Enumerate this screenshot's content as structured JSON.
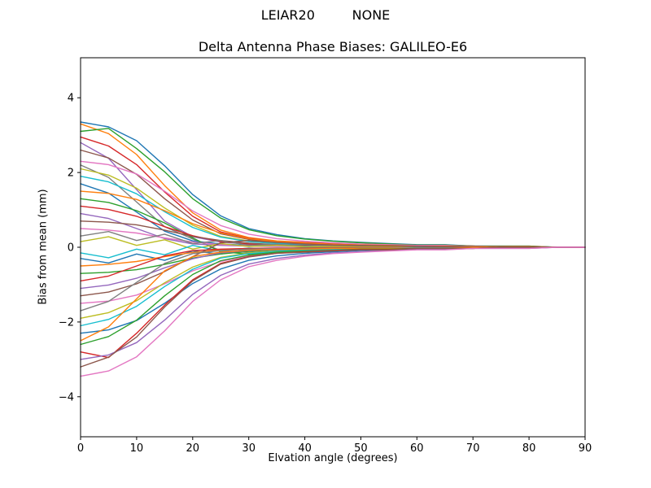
{
  "figure": {
    "suptitle": "LEIAR20         NONE",
    "title": "Delta Antenna Phase Biases: GALILEO-E6",
    "xlabel": "Elvation angle (degrees)",
    "ylabel": "Bias from mean (mm)"
  },
  "chart_data": {
    "type": "line",
    "title": "Delta Antenna Phase Biases: GALILEO-E6",
    "suptitle": "LEIAR20         NONE",
    "xlabel": "Elvation angle (degrees)",
    "ylabel": "Bias from mean (mm)",
    "xlim": [
      0,
      90
    ],
    "ylim": [
      -5.07,
      5.07
    ],
    "xticks": [
      0,
      10,
      20,
      30,
      40,
      50,
      60,
      70,
      80,
      90
    ],
    "yticks": [
      -4,
      -2,
      0,
      2,
      4
    ],
    "grid": false,
    "legend": "none",
    "x": [
      0,
      5,
      10,
      15,
      20,
      25,
      30,
      35,
      40,
      45,
      50,
      55,
      60,
      65,
      70,
      75,
      80,
      85,
      90
    ],
    "series": [
      {
        "name": "line-01",
        "color": "#1f77b4",
        "values": [
          3.35,
          3.22,
          2.85,
          2.18,
          1.41,
          0.84,
          0.5,
          0.34,
          0.23,
          0.17,
          0.13,
          0.1,
          0.07,
          0.07,
          0.03,
          0.03,
          0.03,
          0.0,
          0.0
        ]
      },
      {
        "name": "line-02",
        "color": "#ff7f0e",
        "values": [
          3.3,
          3.04,
          2.48,
          1.65,
          0.92,
          0.46,
          0.26,
          0.17,
          0.13,
          0.1,
          0.07,
          0.07,
          0.03,
          0.03,
          0.03,
          0.0,
          0.0,
          0.0,
          0.0
        ]
      },
      {
        "name": "line-03",
        "color": "#2ca02c",
        "values": [
          3.1,
          3.18,
          2.64,
          2.02,
          1.3,
          0.78,
          0.47,
          0.31,
          0.22,
          0.16,
          0.12,
          0.09,
          0.06,
          0.06,
          0.03,
          0.03,
          0.03,
          0.0,
          0.0
        ]
      },
      {
        "name": "line-04",
        "color": "#d62728",
        "values": [
          2.95,
          2.71,
          2.21,
          1.48,
          0.83,
          0.41,
          0.24,
          0.15,
          0.12,
          0.09,
          0.06,
          0.06,
          0.03,
          0.03,
          0.03,
          0.0,
          0.0,
          0.0,
          0.0
        ]
      },
      {
        "name": "line-05",
        "color": "#9467bd",
        "values": [
          2.8,
          2.38,
          1.54,
          0.7,
          0.28,
          0.14,
          0.08,
          0.06,
          0.06,
          0.03,
          0.03,
          0.03,
          0.03,
          0.03,
          0.0,
          0.0,
          0.0,
          0.0,
          0.0
        ]
      },
      {
        "name": "line-06",
        "color": "#8c564b",
        "values": [
          2.6,
          2.39,
          1.95,
          1.3,
          0.73,
          0.36,
          0.21,
          0.13,
          0.1,
          0.08,
          0.05,
          0.05,
          0.03,
          0.03,
          0.03,
          0.0,
          0.0,
          0.0,
          0.0
        ]
      },
      {
        "name": "line-07",
        "color": "#e377c2",
        "values": [
          2.3,
          2.21,
          1.96,
          1.5,
          0.97,
          0.58,
          0.35,
          0.23,
          0.16,
          0.12,
          0.09,
          0.07,
          0.05,
          0.05,
          0.02,
          0.02,
          0.02,
          0.0,
          0.0
        ]
      },
      {
        "name": "line-08",
        "color": "#7f7f7f",
        "values": [
          2.2,
          1.87,
          1.21,
          0.55,
          0.22,
          -0.09,
          -0.14,
          -0.1,
          -0.07,
          -0.05,
          -0.04,
          -0.03,
          -0.02,
          -0.02,
          -0.01,
          0.0,
          0.0,
          0.0,
          0.0
        ]
      },
      {
        "name": "line-09",
        "color": "#bcbd22",
        "values": [
          2.1,
          1.93,
          1.58,
          1.05,
          0.59,
          0.29,
          0.17,
          0.11,
          0.08,
          0.06,
          0.04,
          0.04,
          0.02,
          0.02,
          0.02,
          0.0,
          0.0,
          0.0,
          0.0
        ]
      },
      {
        "name": "line-10",
        "color": "#17becf",
        "values": [
          1.9,
          1.75,
          1.43,
          0.95,
          0.53,
          0.27,
          0.15,
          0.1,
          0.08,
          0.06,
          0.04,
          0.04,
          0.02,
          0.02,
          0.02,
          0.0,
          0.0,
          0.0,
          0.0
        ]
      },
      {
        "name": "line-11",
        "color": "#1f77b4",
        "values": [
          1.7,
          1.45,
          0.94,
          0.43,
          0.17,
          0.09,
          0.05,
          0.03,
          0.03,
          0.02,
          0.02,
          0.02,
          0.02,
          0.02,
          0.0,
          0.0,
          0.0,
          0.0,
          0.0
        ]
      },
      {
        "name": "line-12",
        "color": "#ff7f0e",
        "values": [
          1.5,
          1.44,
          1.28,
          0.98,
          0.63,
          0.38,
          0.23,
          0.15,
          0.11,
          0.08,
          0.06,
          0.05,
          0.03,
          0.03,
          0.02,
          0.02,
          0.02,
          0.0,
          0.0
        ]
      },
      {
        "name": "line-13",
        "color": "#2ca02c",
        "values": [
          1.3,
          1.2,
          0.98,
          0.65,
          0.25,
          -0.12,
          -0.18,
          -0.13,
          -0.09,
          -0.06,
          -0.05,
          -0.04,
          -0.03,
          -0.02,
          -0.02,
          -0.01,
          0.0,
          0.0,
          0.0
        ]
      },
      {
        "name": "line-14",
        "color": "#d62728",
        "values": [
          1.1,
          1.01,
          0.83,
          0.55,
          0.31,
          0.15,
          0.09,
          0.06,
          0.04,
          0.03,
          0.02,
          0.02,
          0.01,
          0.01,
          0.01,
          0.0,
          0.0,
          0.0,
          0.0
        ]
      },
      {
        "name": "line-15",
        "color": "#9467bd",
        "values": [
          0.9,
          0.77,
          0.5,
          0.23,
          0.09,
          0.05,
          0.03,
          0.02,
          0.02,
          0.01,
          0.01,
          0.01,
          0.01,
          0.01,
          0.0,
          0.0,
          0.0,
          0.0,
          0.0
        ]
      },
      {
        "name": "line-16",
        "color": "#8c564b",
        "values": [
          0.7,
          0.67,
          0.6,
          0.46,
          0.29,
          0.18,
          0.11,
          0.07,
          0.05,
          0.04,
          0.03,
          0.02,
          0.01,
          0.01,
          0.01,
          0.01,
          0.01,
          0.0,
          0.0
        ]
      },
      {
        "name": "line-17",
        "color": "#e377c2",
        "values": [
          0.5,
          0.46,
          0.38,
          0.25,
          0.14,
          0.07,
          0.04,
          0.03,
          0.02,
          0.02,
          0.01,
          0.01,
          0.01,
          0.01,
          0.0,
          0.0,
          0.0,
          0.0,
          0.0
        ]
      },
      {
        "name": "line-18",
        "color": "#7f7f7f",
        "values": [
          0.3,
          0.42,
          0.18,
          0.35,
          0.1,
          0.18,
          0.05,
          0.08,
          0.03,
          0.05,
          0.02,
          0.02,
          0.01,
          0.01,
          0.0,
          0.0,
          0.0,
          0.0,
          0.0
        ]
      },
      {
        "name": "line-19",
        "color": "#bcbd22",
        "values": [
          0.15,
          0.28,
          0.05,
          0.2,
          -0.05,
          0.1,
          0.02,
          0.05,
          0.01,
          0.02,
          0.01,
          0.01,
          0.0,
          0.0,
          0.0,
          0.0,
          0.0,
          0.0,
          0.0
        ]
      },
      {
        "name": "line-20",
        "color": "#17becf",
        "values": [
          -0.15,
          -0.28,
          -0.05,
          -0.2,
          0.05,
          -0.1,
          -0.02,
          -0.05,
          -0.01,
          -0.02,
          -0.01,
          -0.01,
          0.0,
          0.0,
          0.0,
          0.0,
          0.0,
          0.0,
          0.0
        ]
      },
      {
        "name": "line-21",
        "color": "#1f77b4",
        "values": [
          -0.3,
          -0.42,
          -0.18,
          -0.35,
          -0.1,
          -0.18,
          -0.05,
          -0.08,
          -0.03,
          -0.05,
          -0.02,
          -0.02,
          -0.01,
          -0.01,
          0.0,
          0.0,
          0.0,
          0.0,
          0.0
        ]
      },
      {
        "name": "line-22",
        "color": "#ff7f0e",
        "values": [
          -0.5,
          -0.46,
          -0.38,
          -0.25,
          -0.14,
          -0.07,
          -0.04,
          -0.03,
          -0.02,
          -0.02,
          -0.01,
          -0.01,
          -0.01,
          -0.01,
          0.0,
          0.0,
          0.0,
          0.0,
          0.0
        ]
      },
      {
        "name": "line-23",
        "color": "#2ca02c",
        "values": [
          -0.7,
          -0.67,
          -0.6,
          -0.46,
          -0.29,
          -0.18,
          -0.11,
          -0.07,
          -0.05,
          -0.04,
          -0.03,
          -0.02,
          -0.01,
          -0.01,
          -0.01,
          -0.01,
          -0.01,
          0.0,
          0.0
        ]
      },
      {
        "name": "line-24",
        "color": "#d62728",
        "values": [
          -0.9,
          -0.77,
          -0.5,
          -0.23,
          -0.09,
          -0.05,
          -0.03,
          -0.02,
          -0.02,
          -0.01,
          -0.01,
          -0.01,
          -0.01,
          -0.01,
          0.0,
          0.0,
          0.0,
          0.0,
          0.0
        ]
      },
      {
        "name": "line-25",
        "color": "#9467bd",
        "values": [
          -1.1,
          -1.01,
          -0.83,
          -0.55,
          -0.31,
          -0.15,
          -0.09,
          -0.06,
          -0.04,
          -0.03,
          -0.02,
          -0.02,
          -0.01,
          -0.01,
          -0.01,
          0.0,
          0.0,
          0.0,
          0.0
        ]
      },
      {
        "name": "line-26",
        "color": "#8c564b",
        "values": [
          -1.3,
          -1.2,
          -0.98,
          -0.65,
          -0.25,
          0.12,
          0.18,
          0.13,
          0.09,
          0.06,
          0.05,
          0.04,
          0.03,
          0.02,
          0.02,
          0.01,
          0.0,
          0.0,
          0.0
        ]
      },
      {
        "name": "line-27",
        "color": "#e377c2",
        "values": [
          -1.5,
          -1.44,
          -1.28,
          -0.98,
          -0.63,
          -0.38,
          -0.23,
          -0.15,
          -0.11,
          -0.08,
          -0.06,
          -0.05,
          -0.03,
          -0.03,
          -0.02,
          -0.02,
          -0.02,
          0.0,
          0.0
        ]
      },
      {
        "name": "line-28",
        "color": "#7f7f7f",
        "values": [
          -1.7,
          -1.45,
          -0.94,
          -0.43,
          -0.17,
          -0.09,
          -0.05,
          -0.03,
          -0.03,
          -0.02,
          -0.02,
          -0.02,
          -0.02,
          -0.02,
          0.0,
          0.0,
          0.0,
          0.0,
          0.0
        ]
      },
      {
        "name": "line-29",
        "color": "#bcbd22",
        "values": [
          -1.9,
          -1.75,
          -1.43,
          -0.95,
          -0.53,
          -0.27,
          -0.15,
          -0.1,
          -0.08,
          -0.06,
          -0.04,
          -0.04,
          -0.02,
          -0.02,
          -0.02,
          0.0,
          0.0,
          0.0,
          0.0
        ]
      },
      {
        "name": "line-30",
        "color": "#17becf",
        "values": [
          -2.1,
          -1.93,
          -1.58,
          -1.05,
          -0.59,
          -0.29,
          -0.17,
          -0.11,
          -0.08,
          -0.06,
          -0.04,
          -0.04,
          -0.02,
          -0.02,
          -0.02,
          0.0,
          0.0,
          0.0,
          0.0
        ]
      },
      {
        "name": "line-31",
        "color": "#1f77b4",
        "values": [
          -2.3,
          -2.21,
          -1.96,
          -1.5,
          -0.97,
          -0.58,
          -0.35,
          -0.23,
          -0.16,
          -0.12,
          -0.09,
          -0.07,
          -0.05,
          -0.05,
          -0.02,
          -0.02,
          -0.02,
          0.0,
          0.0
        ]
      },
      {
        "name": "line-32",
        "color": "#ff7f0e",
        "values": [
          -2.5,
          -2.13,
          -1.38,
          -0.63,
          -0.25,
          -0.13,
          -0.08,
          -0.05,
          -0.05,
          -0.03,
          -0.03,
          -0.03,
          -0.03,
          -0.03,
          0.0,
          0.0,
          0.0,
          0.0,
          0.0
        ]
      },
      {
        "name": "line-33",
        "color": "#2ca02c",
        "values": [
          -2.6,
          -2.39,
          -1.95,
          -1.3,
          -0.73,
          -0.36,
          -0.21,
          -0.13,
          -0.1,
          -0.08,
          -0.05,
          -0.05,
          -0.03,
          -0.03,
          -0.03,
          0.0,
          0.0,
          0.0,
          0.0
        ]
      },
      {
        "name": "line-34",
        "color": "#d62728",
        "values": [
          -2.8,
          -2.95,
          -2.3,
          -1.55,
          -0.87,
          -0.43,
          -0.25,
          -0.16,
          -0.12,
          -0.09,
          -0.06,
          -0.06,
          -0.03,
          -0.03,
          -0.03,
          0.0,
          0.0,
          0.0,
          0.0
        ]
      },
      {
        "name": "line-35",
        "color": "#9467bd",
        "values": [
          -3.0,
          -2.88,
          -2.55,
          -1.95,
          -1.26,
          -0.75,
          -0.45,
          -0.3,
          -0.21,
          -0.15,
          -0.12,
          -0.09,
          -0.06,
          -0.06,
          -0.03,
          -0.03,
          -0.03,
          0.0,
          0.0
        ]
      },
      {
        "name": "line-36",
        "color": "#8c564b",
        "values": [
          -3.2,
          -2.94,
          -2.4,
          -1.6,
          -0.9,
          -0.45,
          -0.26,
          -0.16,
          -0.13,
          -0.1,
          -0.07,
          -0.07,
          -0.03,
          -0.03,
          -0.03,
          0.0,
          0.0,
          0.0,
          0.0
        ]
      },
      {
        "name": "line-37",
        "color": "#e377c2",
        "values": [
          -3.45,
          -3.31,
          -2.93,
          -2.24,
          -1.45,
          -0.87,
          -0.52,
          -0.35,
          -0.24,
          -0.17,
          -0.13,
          -0.1,
          -0.07,
          -0.07,
          -0.03,
          -0.03,
          -0.03,
          0.0,
          0.0
        ]
      }
    ]
  }
}
